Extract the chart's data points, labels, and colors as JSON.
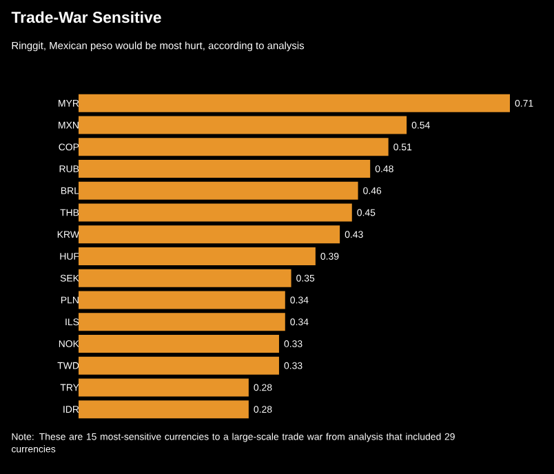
{
  "chart_data": {
    "type": "bar",
    "orientation": "horizontal",
    "title": "Trade-War Sensitive",
    "subtitle": "Ringgit, Mexican peso would be most hurt, according to analysis",
    "categories": [
      "MYR",
      "MXN",
      "COP",
      "RUB",
      "BRL",
      "THB",
      "KRW",
      "HUF",
      "SEK",
      "PLN",
      "ILS",
      "NOK",
      "TWD",
      "TRY",
      "IDR"
    ],
    "values": [
      0.71,
      0.54,
      0.51,
      0.48,
      0.46,
      0.45,
      0.43,
      0.39,
      0.35,
      0.34,
      0.34,
      0.33,
      0.33,
      0.28,
      0.28
    ],
    "color": "#e8952a",
    "data_labels": true,
    "annotations": [
      "Note: These are 15 most-sensitive currencies to a large-scale trade war from analysis that included 29 currencies"
    ]
  }
}
